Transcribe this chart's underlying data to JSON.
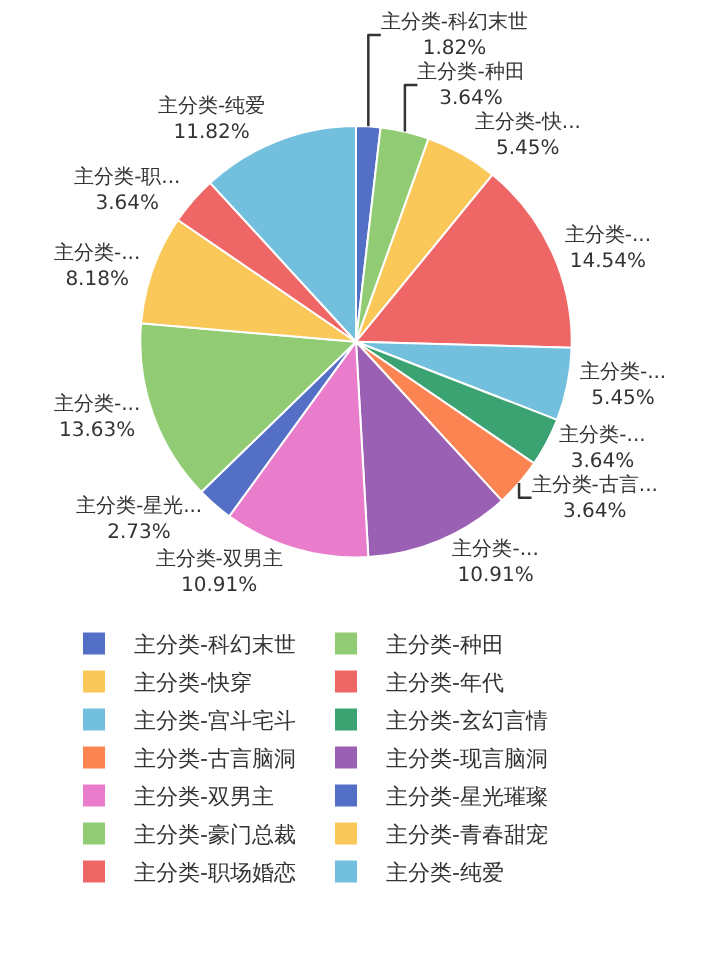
{
  "chart_data": {
    "type": "pie",
    "categories": [
      "主分类-科幻末世",
      "主分类-种田",
      "主分类-快穿",
      "主分类-年代",
      "主分类-宫斗宅斗",
      "主分类-玄幻言情",
      "主分类-古言脑洞",
      "主分类-现言脑洞",
      "主分类-双男主",
      "主分类-星光璀璨",
      "主分类-豪门总裁",
      "主分类-青春甜宠",
      "主分类-职场婚恋",
      "主分类-纯爱"
    ],
    "values": [
      1.82,
      3.64,
      5.45,
      14.54,
      5.45,
      3.64,
      3.64,
      10.91,
      10.91,
      2.73,
      13.63,
      8.18,
      3.64,
      11.82
    ],
    "colors": [
      "#5470c6",
      "#91cc75",
      "#fac858",
      "#ee6666",
      "#73c0de",
      "#3ba272",
      "#fc8452",
      "#9a60b4",
      "#ea7ccc",
      "#5470c6",
      "#91cc75",
      "#fac858",
      "#ee6666",
      "#73c0de"
    ],
    "value_labels": [
      "主分类-科幻末世\n1.82%",
      "主分类-种田\n3.64%",
      "主分类-快...\n5.45%",
      "主分类-...\n14.54%",
      "主分类-...\n5.45%",
      "主分类-...\n3.64%",
      "主分类-古言...\n3.64%",
      "主分类-...\n10.91%",
      "主分类-双男主\n10.91%",
      "主分类-星光...\n2.73%",
      "主分类-...\n13.63%",
      "主分类-...\n8.18%",
      "主分类-职...\n3.64%",
      "主分类-纯爱\n11.82%"
    ],
    "legend": "bottom"
  }
}
